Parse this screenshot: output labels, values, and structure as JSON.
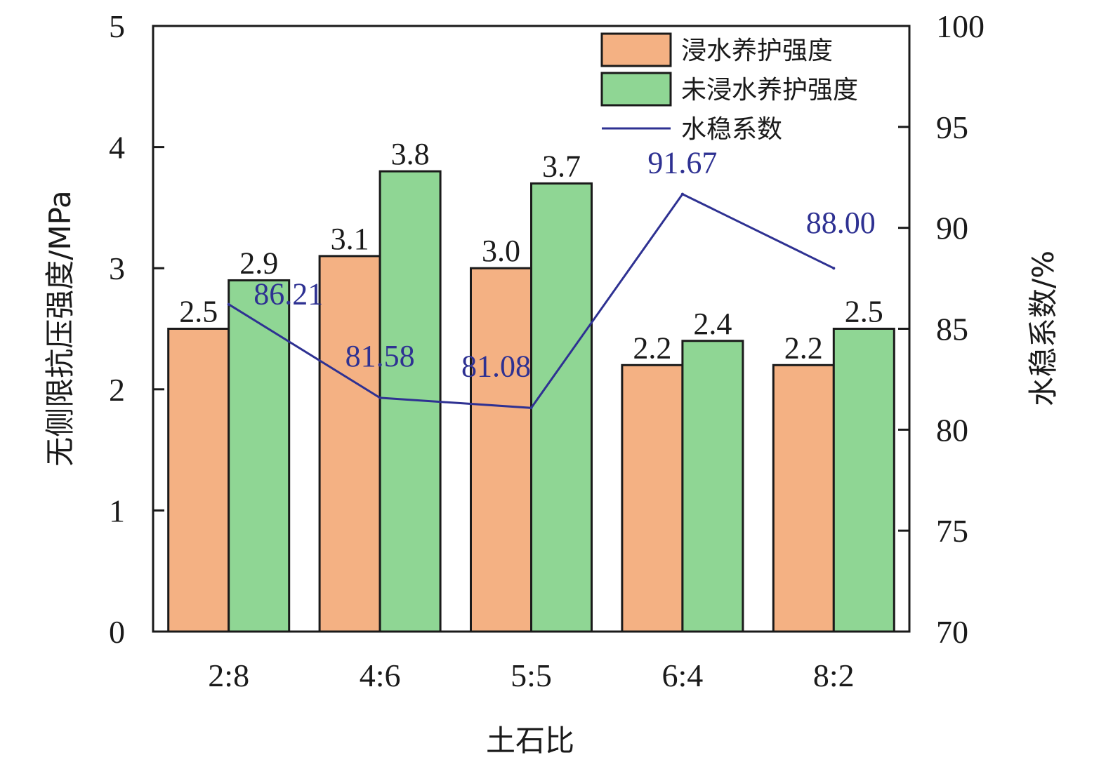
{
  "chart_data": {
    "type": "bar",
    "categories": [
      "2:8",
      "4:6",
      "5:5",
      "6:4",
      "8:2"
    ],
    "series": [
      {
        "name": "浸水养护强度",
        "type": "bar",
        "axis": "left",
        "values": [
          2.5,
          3.1,
          3.0,
          2.2,
          2.2
        ],
        "labels": [
          "2.5",
          "3.1",
          "3.0",
          "2.2",
          "2.2"
        ],
        "color": "#f4b183"
      },
      {
        "name": "未浸水养护强度",
        "type": "bar",
        "axis": "left",
        "values": [
          2.9,
          3.8,
          3.7,
          2.4,
          2.5
        ],
        "labels": [
          "2.9",
          "3.8",
          "3.7",
          "2.4",
          "2.5"
        ],
        "color": "#8fd694"
      },
      {
        "name": "水稳系数",
        "type": "line",
        "axis": "right",
        "values": [
          86.21,
          81.58,
          81.08,
          91.67,
          88.0
        ],
        "labels": [
          "86.21",
          "81.58",
          "81.08",
          "91.67",
          "88.00"
        ],
        "color": "#2e3192"
      }
    ],
    "xlabel": "土石比",
    "ylabel": "无侧限抗压强度/MPa",
    "y2label": "水稳系数/%",
    "ylim": [
      0,
      5
    ],
    "y2lim": [
      70,
      100
    ],
    "yticks": [
      "0",
      "1",
      "2",
      "3",
      "4",
      "5"
    ],
    "y2ticks": [
      "70",
      "75",
      "80",
      "85",
      "90",
      "95",
      "100"
    ],
    "grid": false,
    "legend_position": "top-right"
  }
}
